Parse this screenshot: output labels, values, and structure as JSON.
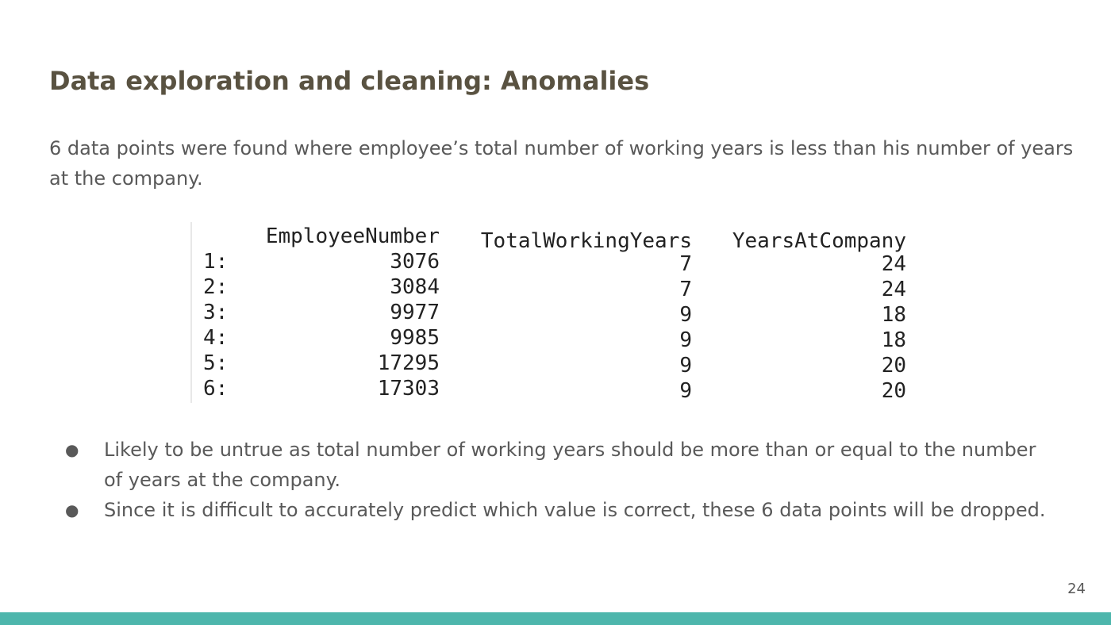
{
  "slide": {
    "title": "Data exploration and cleaning: Anomalies",
    "intro": "6 data points were found where employee’s total number of working years is less than his number of years at the company.",
    "table": {
      "columns": [
        "EmployeeNumber",
        "TotalWorkingYears",
        "YearsAtCompany"
      ],
      "rows": [
        {
          "index": "1:",
          "EmployeeNumber": "3076",
          "TotalWorkingYears": "7",
          "YearsAtCompany": "24"
        },
        {
          "index": "2:",
          "EmployeeNumber": "3084",
          "TotalWorkingYears": "7",
          "YearsAtCompany": "24"
        },
        {
          "index": "3:",
          "EmployeeNumber": "9977",
          "TotalWorkingYears": "9",
          "YearsAtCompany": "18"
        },
        {
          "index": "4:",
          "EmployeeNumber": "9985",
          "TotalWorkingYears": "9",
          "YearsAtCompany": "18"
        },
        {
          "index": "5:",
          "EmployeeNumber": "17295",
          "TotalWorkingYears": "9",
          "YearsAtCompany": "20"
        },
        {
          "index": "6:",
          "EmployeeNumber": "17303",
          "TotalWorkingYears": "9",
          "YearsAtCompany": "20"
        }
      ]
    },
    "bullets": [
      "Likely to be untrue as total number of working years should be more than or equal to the number of years at the company.",
      "Since it is difficult to accurately predict which value is correct, these 6 data points will be dropped."
    ],
    "bullet_glyph": "●",
    "page_number": "24",
    "accent_color": "#4db6ac",
    "title_color": "#595241"
  }
}
